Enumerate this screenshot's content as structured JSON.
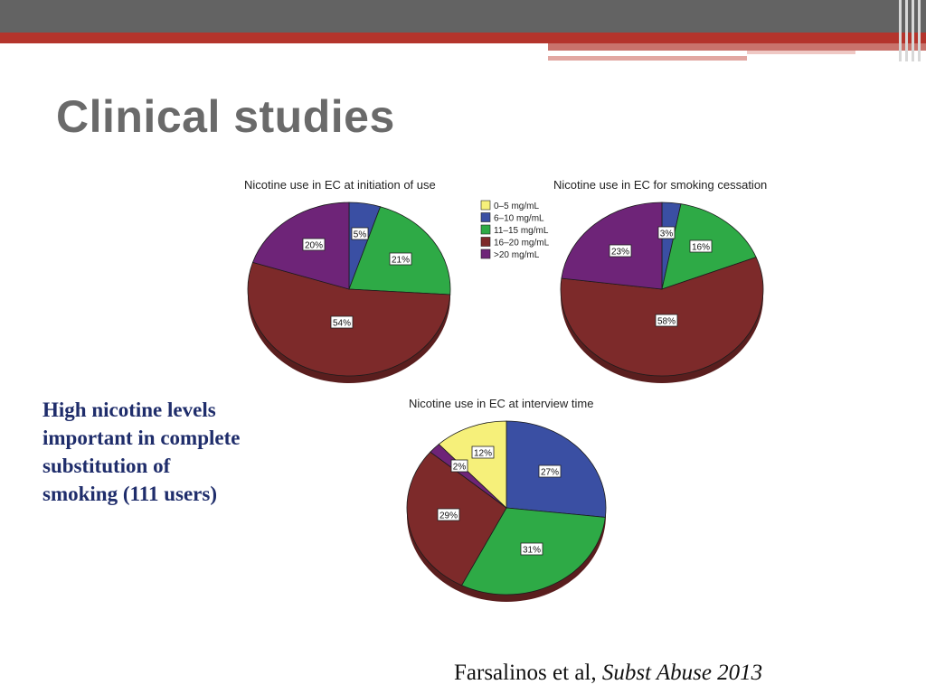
{
  "slide": {
    "title": "Clinical studies",
    "body_lines": [
      "High nicotine levels",
      "important in complete",
      "substitution of",
      "smoking (111 users)"
    ],
    "citation_authors": "Farsalinos et al, ",
    "citation_journal": "Subst Abuse 2013"
  },
  "colors": {
    "0-5": "#f6f07a",
    "6-10": "#3a4fa3",
    "11-15": "#2eaa46",
    "16-20": "#7d2a2a",
    ">20": "#6e2478"
  },
  "legend": [
    {
      "key": "0-5",
      "label": "0–5 mg/mL"
    },
    {
      "key": "6-10",
      "label": "6–10 mg/mL"
    },
    {
      "key": "11-15",
      "label": "11–15 mg/mL"
    },
    {
      "key": "16-20",
      "label": "16–20 mg/mL"
    },
    {
      "key": ">20",
      "label": ">20 mg/mL"
    }
  ],
  "chart_data": [
    {
      "type": "pie",
      "title": "Nicotine use in EC at initiation of use",
      "slices": [
        {
          "key": "6-10",
          "value": 5,
          "label": "5%"
        },
        {
          "key": "11-15",
          "value": 21,
          "label": "21%"
        },
        {
          "key": "16-20",
          "value": 54,
          "label": "54%"
        },
        {
          "key": ">20",
          "value": 20,
          "label": "20%"
        }
      ]
    },
    {
      "type": "pie",
      "title": "Nicotine use in EC for smoking cessation",
      "slices": [
        {
          "key": "6-10",
          "value": 3,
          "label": "3%"
        },
        {
          "key": "11-15",
          "value": 16,
          "label": "16%"
        },
        {
          "key": "16-20",
          "value": 58,
          "label": "58%"
        },
        {
          "key": ">20",
          "value": 23,
          "label": "23%"
        }
      ]
    },
    {
      "type": "pie",
      "title": "Nicotine use in EC at interview time",
      "slices": [
        {
          "key": "6-10",
          "value": 27,
          "label": "27%"
        },
        {
          "key": "11-15",
          "value": 31,
          "label": "31%"
        },
        {
          "key": "16-20",
          "value": 29,
          "label": "29%"
        },
        {
          "key": ">20",
          "value": 2,
          "label": "2%"
        },
        {
          "key": "0-5",
          "value": 12,
          "label": "12%"
        }
      ]
    }
  ]
}
